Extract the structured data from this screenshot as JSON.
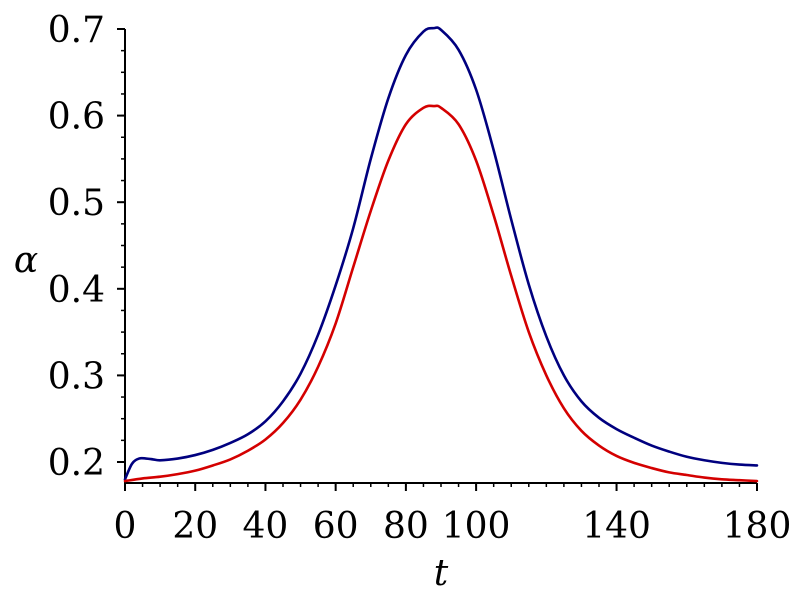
{
  "chart_data": {
    "type": "line",
    "title": "",
    "xlabel": "t",
    "ylabel": "α",
    "xlim": [
      0,
      180
    ],
    "ylim": [
      0.18,
      0.7
    ],
    "x_ticks": [
      0,
      20,
      40,
      60,
      80,
      100,
      140,
      180
    ],
    "x_tick_labels": [
      "0",
      "20",
      "40",
      "60",
      "80",
      "100",
      "140",
      "180"
    ],
    "y_ticks": [
      0.2,
      0.3,
      0.4,
      0.5,
      0.6,
      0.7
    ],
    "y_tick_labels": [
      "0.2",
      "0.3",
      "0.4",
      "0.5",
      "0.6",
      "0.7"
    ],
    "grid": false,
    "legend": "none",
    "series": [
      {
        "color": "#00007f",
        "x": [
          0,
          2,
          4,
          6,
          8,
          10,
          15,
          20,
          25,
          30,
          35,
          40,
          45,
          50,
          55,
          60,
          65,
          70,
          75,
          80,
          85,
          88,
          90,
          95,
          100,
          105,
          110,
          115,
          120,
          125,
          130,
          135,
          140,
          145,
          150,
          155,
          160,
          165,
          170,
          175,
          180
        ],
        "y": [
          0.18,
          0.198,
          0.204,
          0.204,
          0.203,
          0.202,
          0.204,
          0.208,
          0.214,
          0.222,
          0.232,
          0.247,
          0.27,
          0.302,
          0.347,
          0.404,
          0.47,
          0.55,
          0.62,
          0.67,
          0.697,
          0.701,
          0.699,
          0.676,
          0.63,
          0.56,
          0.48,
          0.405,
          0.345,
          0.3,
          0.27,
          0.251,
          0.238,
          0.228,
          0.219,
          0.212,
          0.206,
          0.202,
          0.199,
          0.197,
          0.196
        ]
      },
      {
        "color": "#d40000",
        "x": [
          0,
          5,
          10,
          15,
          20,
          25,
          30,
          35,
          40,
          45,
          50,
          55,
          60,
          65,
          70,
          75,
          80,
          85,
          88,
          90,
          95,
          100,
          105,
          110,
          115,
          120,
          125,
          130,
          135,
          140,
          145,
          150,
          155,
          160,
          165,
          170,
          175,
          180
        ],
        "y": [
          0.178,
          0.181,
          0.183,
          0.186,
          0.19,
          0.196,
          0.203,
          0.213,
          0.226,
          0.245,
          0.272,
          0.31,
          0.36,
          0.425,
          0.49,
          0.548,
          0.59,
          0.609,
          0.611,
          0.609,
          0.59,
          0.548,
          0.485,
          0.415,
          0.35,
          0.3,
          0.262,
          0.236,
          0.219,
          0.207,
          0.199,
          0.193,
          0.188,
          0.185,
          0.182,
          0.18,
          0.179,
          0.178
        ]
      }
    ]
  }
}
